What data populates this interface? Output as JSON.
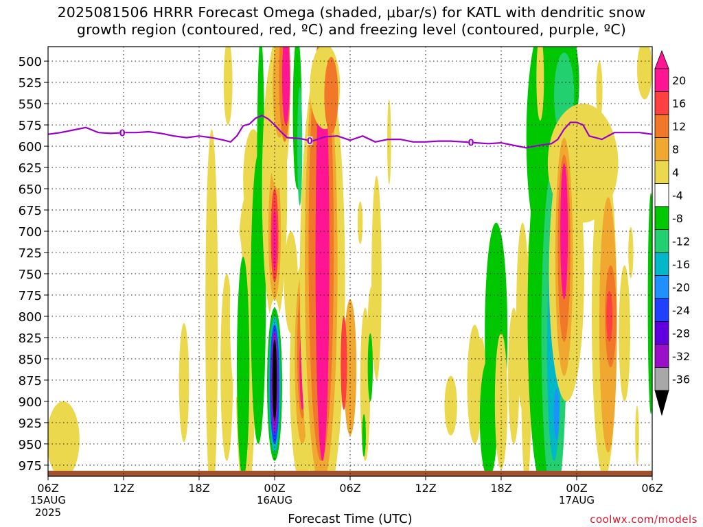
{
  "header": {
    "title": "2025081506 HRRR Forecast Omega (shaded, μbar/s) for KATL with dendritic snow\ngrowth region (contoured, red, ºC) and freezing level (contoured, purple, ºC)"
  },
  "credit": "coolwx.com/models",
  "chart_data": {
    "type": "heatmap",
    "title": "2025081506 HRRR Forecast Omega (shaded, μbar/s) for KATL with dendritic snow growth region (contoured, red, ºC) and freezing level (contoured, purple, ºC)",
    "xlabel": "Forecast Time (UTC)",
    "ylabel": "",
    "x_unit": "hours since 06Z 15AUG 2025",
    "xlim": [
      0,
      48
    ],
    "ylim": [
      988,
      483
    ],
    "y_scale": "pressure (hPa), inverted",
    "grid": true,
    "y_ticks": [
      500,
      525,
      550,
      575,
      600,
      625,
      650,
      675,
      700,
      725,
      750,
      775,
      800,
      825,
      850,
      875,
      900,
      925,
      950,
      975
    ],
    "x_ticks": [
      {
        "x": 0,
        "label": "06Z",
        "sub": "15AUG",
        "sub2": "2025"
      },
      {
        "x": 6,
        "label": "12Z",
        "sub": "",
        "sub2": ""
      },
      {
        "x": 12,
        "label": "18Z",
        "sub": "",
        "sub2": ""
      },
      {
        "x": 18,
        "label": "00Z",
        "sub": "16AUG",
        "sub2": ""
      },
      {
        "x": 24,
        "label": "06Z",
        "sub": "",
        "sub2": ""
      },
      {
        "x": 30,
        "label": "12Z",
        "sub": "",
        "sub2": ""
      },
      {
        "x": 36,
        "label": "18Z",
        "sub": "",
        "sub2": ""
      },
      {
        "x": 42,
        "label": "00Z",
        "sub": "17AUG",
        "sub2": ""
      },
      {
        "x": 48,
        "label": "06Z",
        "sub": "",
        "sub2": ""
      }
    ],
    "colorbar": {
      "labels": [
        "20",
        "16",
        "12",
        "8",
        "4",
        "-4",
        "-8",
        "-12",
        "-16",
        "-20",
        "-24",
        "-28",
        "-32",
        "-36"
      ],
      "colors": [
        "#ff1493",
        "#ff4040",
        "#f07828",
        "#f0a830",
        "#ecd84c",
        "#ffffff",
        "#00c800",
        "#22d070",
        "#00b8c8",
        "#1e90ff",
        "#2040ff",
        "#6000e0",
        "#9a10c8",
        "#a8a8a8",
        "#000000"
      ],
      "top_arrow_color": "#ff1493",
      "bottom_arrow_color": "#000000"
    },
    "omega_regions": [
      {
        "x": 1.2,
        "p": 945,
        "rx": 1.3,
        "rp": 45,
        "level": 4
      },
      {
        "x": 10.8,
        "p": 878,
        "rx": 0.4,
        "rp": 70,
        "level": 4
      },
      {
        "x": 13.0,
        "p": 800,
        "rx": 0.5,
        "rp": 220,
        "level": 4
      },
      {
        "x": 14.2,
        "p": 860,
        "rx": 0.5,
        "rp": 110,
        "level": 4
      },
      {
        "x": 15.7,
        "p": 840,
        "rx": 0.8,
        "rp": 180,
        "level": 4
      },
      {
        "x": 14.3,
        "p": 525,
        "rx": 0.35,
        "rp": 50,
        "level": 4
      },
      {
        "x": 16.3,
        "p": 640,
        "rx": 0.8,
        "rp": 60,
        "level": 4
      },
      {
        "x": 15.0,
        "p": 795,
        "rx": 0.55,
        "rp": 100,
        "level": -4
      },
      {
        "x": 15.5,
        "p": 860,
        "rx": 0.5,
        "rp": 130,
        "level": -8
      },
      {
        "x": 16.7,
        "p": 780,
        "rx": 0.6,
        "rp": 170,
        "level": -8
      },
      {
        "x": 16.9,
        "p": 630,
        "rx": 0.3,
        "rp": 160,
        "level": -8
      },
      {
        "x": 18.0,
        "p": 650,
        "rx": 1.0,
        "rp": 160,
        "level": 4
      },
      {
        "x": 18.0,
        "p": 700,
        "rx": 0.5,
        "rp": 80,
        "level": 8
      },
      {
        "x": 18.0,
        "p": 705,
        "rx": 0.3,
        "rp": 55,
        "level": 16
      },
      {
        "x": 18.0,
        "p": 710,
        "rx": 0.18,
        "rp": 35,
        "level": 20
      },
      {
        "x": 18.3,
        "p": 560,
        "rx": 0.9,
        "rp": 90,
        "level": 4
      },
      {
        "x": 18.4,
        "p": 530,
        "rx": 0.55,
        "rp": 60,
        "level": 8
      },
      {
        "x": 18.8,
        "p": 520,
        "rx": 0.45,
        "rp": 75,
        "level": 12
      },
      {
        "x": 18.9,
        "p": 520,
        "rx": 0.3,
        "rp": 55,
        "level": 20
      },
      {
        "x": 18.0,
        "p": 880,
        "rx": 0.7,
        "rp": 100,
        "level": -4
      },
      {
        "x": 18.0,
        "p": 880,
        "rx": 0.6,
        "rp": 90,
        "level": -8
      },
      {
        "x": 18.0,
        "p": 880,
        "rx": 0.48,
        "rp": 80,
        "level": -16
      },
      {
        "x": 18.0,
        "p": 880,
        "rx": 0.38,
        "rp": 70,
        "level": -24
      },
      {
        "x": 18.0,
        "p": 878,
        "rx": 0.28,
        "rp": 60,
        "level": -32
      },
      {
        "x": 18.0,
        "p": 875,
        "rx": 0.18,
        "rp": 48,
        "level": -36
      },
      {
        "x": 20.2,
        "p": 870,
        "rx": 1.0,
        "rp": 130,
        "level": 4
      },
      {
        "x": 19.3,
        "p": 760,
        "rx": 0.55,
        "rp": 60,
        "level": 4
      },
      {
        "x": 20.2,
        "p": 850,
        "rx": 0.6,
        "rp": 100,
        "level": 8
      },
      {
        "x": 20.2,
        "p": 840,
        "rx": 0.4,
        "rp": 80,
        "level": 12
      },
      {
        "x": 20.2,
        "p": 860,
        "rx": 0.22,
        "rp": 50,
        "level": 20
      },
      {
        "x": 19.8,
        "p": 560,
        "rx": 0.35,
        "rp": 90,
        "level": -8
      },
      {
        "x": 20.0,
        "p": 600,
        "rx": 0.2,
        "rp": 70,
        "level": -12
      },
      {
        "x": 21.8,
        "p": 760,
        "rx": 1.8,
        "rp": 270,
        "level": 4
      },
      {
        "x": 21.7,
        "p": 740,
        "rx": 1.3,
        "rp": 260,
        "level": 8
      },
      {
        "x": 21.7,
        "p": 720,
        "rx": 1.0,
        "rp": 250,
        "level": 12
      },
      {
        "x": 21.8,
        "p": 730,
        "rx": 0.55,
        "rp": 240,
        "level": 20
      },
      {
        "x": 22.0,
        "p": 530,
        "rx": 1.2,
        "rp": 50,
        "level": 4
      },
      {
        "x": 22.5,
        "p": 540,
        "rx": 0.55,
        "rp": 45,
        "level": 12
      },
      {
        "x": 24.0,
        "p": 860,
        "rx": 0.5,
        "rp": 80,
        "level": 8
      },
      {
        "x": 23.5,
        "p": 855,
        "rx": 0.25,
        "rp": 55,
        "level": 16
      },
      {
        "x": 25.2,
        "p": 880,
        "rx": 0.4,
        "rp": 90,
        "level": 4
      },
      {
        "x": 25.7,
        "p": 810,
        "rx": 0.3,
        "rp": 45,
        "level": 4
      },
      {
        "x": 25.6,
        "p": 860,
        "rx": 0.2,
        "rp": 40,
        "level": -8
      },
      {
        "x": 25.1,
        "p": 940,
        "rx": 0.15,
        "rp": 25,
        "level": -8
      },
      {
        "x": 24.8,
        "p": 690,
        "rx": 0.2,
        "rp": 25,
        "level": 4
      },
      {
        "x": 26.1,
        "p": 755,
        "rx": 0.4,
        "rp": 120,
        "level": 4
      },
      {
        "x": 27.1,
        "p": 595,
        "rx": 0.15,
        "rp": 50,
        "level": 4
      },
      {
        "x": 32.0,
        "p": 905,
        "rx": 0.5,
        "rp": 35,
        "level": 4
      },
      {
        "x": 33.9,
        "p": 880,
        "rx": 0.6,
        "rp": 70,
        "level": 4
      },
      {
        "x": 34.4,
        "p": 860,
        "rx": 0.35,
        "rp": 35,
        "level": 4
      },
      {
        "x": 35.6,
        "p": 820,
        "rx": 0.9,
        "rp": 130,
        "level": -8
      },
      {
        "x": 35.0,
        "p": 920,
        "rx": 0.7,
        "rp": 70,
        "level": -8
      },
      {
        "x": 36.0,
        "p": 900,
        "rx": 0.5,
        "rp": 80,
        "level": 4
      },
      {
        "x": 37.0,
        "p": 870,
        "rx": 0.45,
        "rp": 80,
        "level": 4
      },
      {
        "x": 38.0,
        "p": 880,
        "rx": 0.4,
        "rp": 120,
        "level": 4
      },
      {
        "x": 38.5,
        "p": 780,
        "rx": 0.5,
        "rp": 90,
        "level": 4
      },
      {
        "x": 37.7,
        "p": 800,
        "rx": 0.5,
        "rp": 110,
        "level": 4
      },
      {
        "x": 39.6,
        "p": 590,
        "rx": 1.6,
        "rp": 140,
        "level": -8
      },
      {
        "x": 39.3,
        "p": 800,
        "rx": 1.2,
        "rp": 200,
        "level": -8
      },
      {
        "x": 40.2,
        "p": 820,
        "rx": 1.0,
        "rp": 200,
        "level": -12
      },
      {
        "x": 40.2,
        "p": 840,
        "rx": 0.55,
        "rp": 130,
        "level": -16
      },
      {
        "x": 40.4,
        "p": 915,
        "rx": 0.2,
        "rp": 30,
        "level": -20
      },
      {
        "x": 39.1,
        "p": 520,
        "rx": 0.3,
        "rp": 50,
        "level": 4
      },
      {
        "x": 41.0,
        "p": 525,
        "rx": 1.2,
        "rp": 70,
        "level": -8
      },
      {
        "x": 41.0,
        "p": 540,
        "rx": 0.8,
        "rp": 50,
        "level": -12
      },
      {
        "x": 43.8,
        "p": 535,
        "rx": 0.25,
        "rp": 35,
        "level": 4
      },
      {
        "x": 42.5,
        "p": 620,
        "rx": 2.8,
        "rp": 70,
        "level": 4
      },
      {
        "x": 43.6,
        "p": 650,
        "rx": 0.5,
        "rp": 40,
        "level": 4
      },
      {
        "x": 41.2,
        "p": 750,
        "rx": 1.4,
        "rp": 150,
        "level": 4
      },
      {
        "x": 41.0,
        "p": 730,
        "rx": 0.7,
        "rp": 140,
        "level": 8
      },
      {
        "x": 41.0,
        "p": 720,
        "rx": 0.5,
        "rp": 110,
        "level": 12
      },
      {
        "x": 41.0,
        "p": 700,
        "rx": 0.3,
        "rp": 80,
        "level": 20
      },
      {
        "x": 44.2,
        "p": 800,
        "rx": 1.0,
        "rp": 190,
        "level": 4
      },
      {
        "x": 44.5,
        "p": 810,
        "rx": 0.7,
        "rp": 150,
        "level": 8
      },
      {
        "x": 44.7,
        "p": 800,
        "rx": 0.45,
        "rp": 60,
        "level": 12
      },
      {
        "x": 44.6,
        "p": 800,
        "rx": 0.25,
        "rp": 30,
        "level": 16
      },
      {
        "x": 45.8,
        "p": 820,
        "rx": 0.45,
        "rp": 80,
        "level": 4
      },
      {
        "x": 46.3,
        "p": 725,
        "rx": 0.2,
        "rp": 30,
        "level": 4
      },
      {
        "x": 46.8,
        "p": 940,
        "rx": 0.15,
        "rp": 35,
        "level": 4
      },
      {
        "x": 47.4,
        "p": 510,
        "rx": 0.6,
        "rp": 35,
        "level": 4
      },
      {
        "x": 47.9,
        "p": 785,
        "rx": 0.25,
        "rp": 130,
        "level": -8
      }
    ],
    "freezing_level": {
      "color": "#9a00c8",
      "label": "0",
      "label_x": [
        5.9,
        20.8,
        33.6
      ],
      "x": [
        0,
        1,
        2,
        3,
        4,
        5,
        6,
        7,
        8,
        9,
        10,
        11,
        12,
        13,
        14,
        14.5,
        15,
        15.5,
        16,
        16.5,
        17,
        17.5,
        18,
        18.5,
        19,
        20,
        21,
        22,
        23,
        24,
        25,
        26,
        27,
        28,
        29,
        30,
        31,
        32,
        33,
        34,
        35,
        36,
        37,
        38,
        39,
        40,
        40.5,
        41,
        41.5,
        42,
        42.5,
        43,
        44,
        45,
        46,
        47,
        48
      ],
      "p": [
        586,
        584,
        581,
        578,
        584,
        585,
        584,
        584,
        583,
        585,
        588,
        590,
        588,
        590,
        593,
        595,
        588,
        576,
        574,
        567,
        564,
        568,
        575,
        583,
        590,
        591,
        594,
        589,
        588,
        593,
        588,
        595,
        592,
        592,
        595,
        595,
        594,
        594,
        595,
        596,
        597,
        596,
        599,
        602,
        599,
        597,
        592,
        580,
        572,
        572,
        575,
        588,
        592,
        584,
        584,
        584,
        586
      ]
    }
  }
}
